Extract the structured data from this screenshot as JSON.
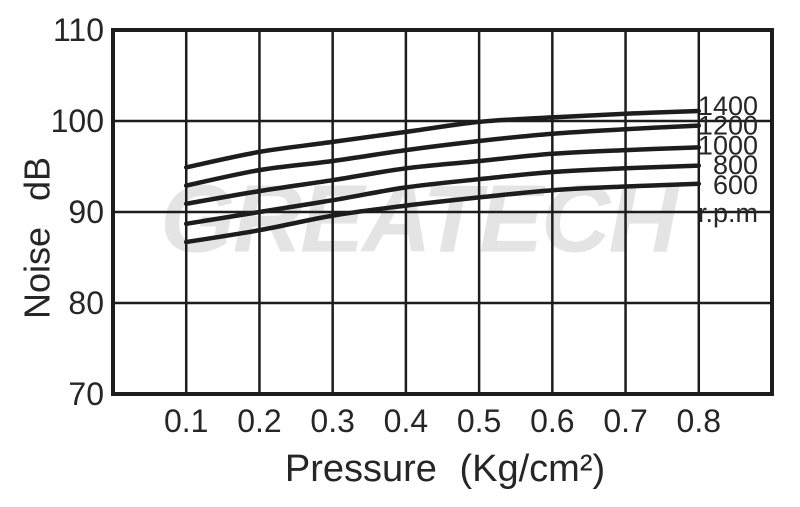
{
  "colors": {
    "background": "#ffffff",
    "line": "#1d1d1d",
    "grid": "#1d1d1d",
    "text": "#262626",
    "watermark": "#e4e4e4"
  },
  "chart_data": {
    "type": "line",
    "title": "",
    "xlabel": "Pressure (Kg/cm²)",
    "ylabel": "Noise dB",
    "x": [
      0.1,
      0.2,
      0.3,
      0.4,
      0.5,
      0.6,
      0.7,
      0.8
    ],
    "xtick_labels": [
      "0.1",
      "0.2",
      "0.3",
      "0.4",
      "0.5",
      "0.6",
      "0.7",
      "0.8"
    ],
    "yticks": [
      110,
      100,
      90,
      80,
      70
    ],
    "ylim": [
      70,
      110
    ],
    "grid": true,
    "legend_position": "right-inside",
    "series": [
      {
        "name": "1400",
        "values": [
          94.9,
          96.6,
          97.7,
          98.8,
          99.9,
          100.4,
          100.8,
          101.1
        ]
      },
      {
        "name": "1200",
        "values": [
          92.9,
          94.6,
          95.6,
          96.8,
          97.8,
          98.6,
          99.1,
          99.5
        ]
      },
      {
        "name": "1000",
        "values": [
          90.9,
          92.3,
          93.5,
          94.8,
          95.6,
          96.4,
          96.8,
          97.1
        ]
      },
      {
        "name": "800",
        "values": [
          88.7,
          90.0,
          91.3,
          92.7,
          93.6,
          94.4,
          94.8,
          95.1
        ]
      },
      {
        "name": "600",
        "values": [
          86.7,
          88.0,
          89.6,
          90.7,
          91.6,
          92.4,
          92.8,
          93.1
        ]
      }
    ],
    "series_unit": "r.p.m",
    "watermark": "GREATECH"
  }
}
